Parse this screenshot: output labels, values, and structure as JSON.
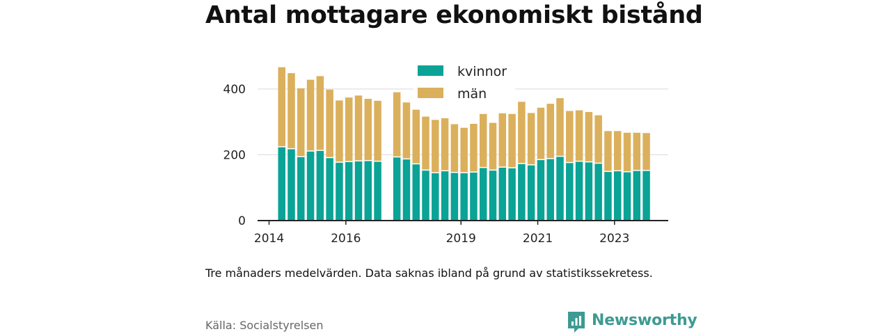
{
  "title": "Antal mottagare ekonomiskt bistånd",
  "note": "Tre månaders medelvärden. Data saknas ibland på grund av statistikssekretess.",
  "source": "Källa: Socialstyrelsen",
  "brand": {
    "name": "Newsworthy",
    "icon": "newsworthy-logo-icon"
  },
  "colors": {
    "kvinnor": "#0aa396",
    "man": "#dbb05c",
    "axis": "#222222",
    "grid": "#d9d9d9"
  },
  "chart_data": {
    "type": "bar",
    "stacked": true,
    "title": "Antal mottagare ekonomiskt bistånd",
    "x_axis": {
      "min": 2013.7,
      "max": 2024.4,
      "ticks": [
        "2014",
        "2016",
        "2019",
        "2021",
        "2023"
      ],
      "tick_values": [
        2014,
        2016,
        2019,
        2021,
        2023
      ]
    },
    "y_axis": {
      "min": 0,
      "max": 480,
      "ticks": [
        0,
        200,
        400
      ]
    },
    "grid": true,
    "legend_position": "top-center",
    "x": [
      2014.33,
      2014.58,
      2014.83,
      2015.08,
      2015.33,
      2015.58,
      2015.83,
      2016.08,
      2016.33,
      2016.58,
      2016.83,
      2017.33,
      2017.58,
      2017.83,
      2018.08,
      2018.33,
      2018.58,
      2018.83,
      2019.08,
      2019.33,
      2019.58,
      2019.83,
      2020.08,
      2020.33,
      2020.58,
      2020.83,
      2021.08,
      2021.33,
      2021.58,
      2021.83,
      2022.08,
      2022.33,
      2022.58,
      2022.83,
      2023.08,
      2023.33,
      2023.58,
      2023.83
    ],
    "series": [
      {
        "name": "kvinnor",
        "values": [
          226,
          220,
          196,
          213,
          215,
          193,
          179,
          181,
          183,
          184,
          182,
          195,
          189,
          174,
          155,
          147,
          153,
          148,
          147,
          149,
          163,
          155,
          164,
          162,
          175,
          171,
          187,
          190,
          197,
          178,
          182,
          180,
          176,
          151,
          153,
          150,
          154,
          154
        ]
      },
      {
        "name": "män",
        "values": [
          240,
          228,
          206,
          215,
          224,
          205,
          186,
          193,
          197,
          186,
          182,
          195,
          170,
          163,
          161,
          159,
          158,
          145,
          135,
          145,
          161,
          142,
          162,
          162,
          186,
          156,
          156,
          165,
          175,
          155,
          153,
          150,
          144,
          121,
          119,
          117,
          113,
          112
        ]
      }
    ]
  }
}
